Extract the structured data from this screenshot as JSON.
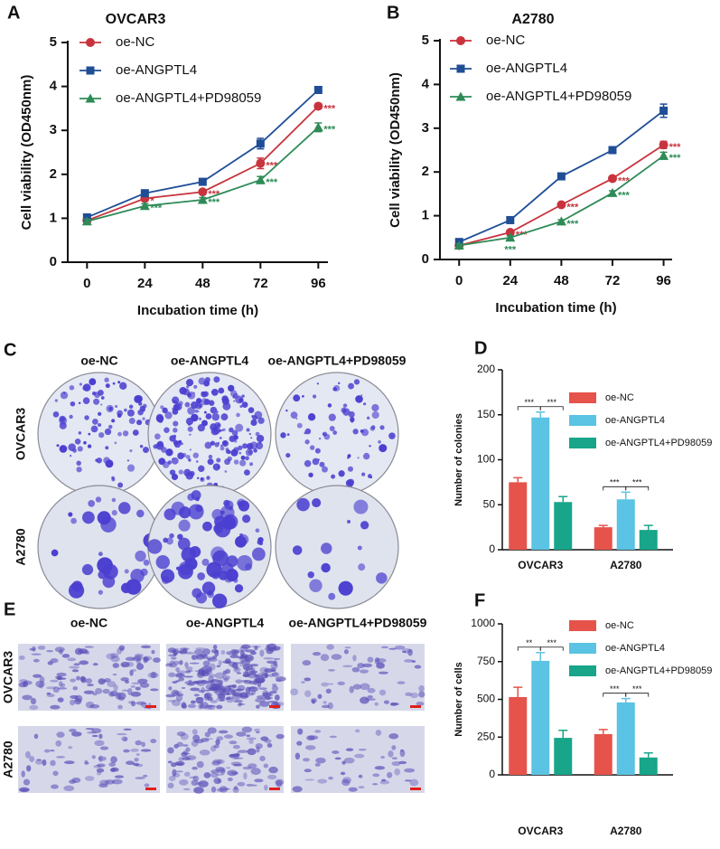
{
  "chart_data": [
    {
      "panel": "A",
      "type": "line",
      "title": "OVCAR3",
      "x_label": "Incubation time (h)",
      "y_label": "Cell viability (OD450nm)",
      "x": [
        0,
        24,
        48,
        72,
        96
      ],
      "xlim": [
        -8,
        100
      ],
      "xticks": [
        0,
        24,
        48,
        72,
        96
      ],
      "ylim": [
        0,
        5
      ],
      "yticks": [
        0,
        1,
        2,
        3,
        4,
        5
      ],
      "series": [
        {
          "name": "oe-NC",
          "color": "#c8333d",
          "marker": "circle",
          "values": [
            0.95,
            1.45,
            1.6,
            2.25,
            3.55
          ],
          "errors": [
            0.05,
            0.05,
            0.05,
            0.12,
            0.05
          ],
          "significance": [
            null,
            "*",
            "***",
            "***",
            "***"
          ]
        },
        {
          "name": "oe-ANGPTL4",
          "color": "#1f4e96",
          "marker": "square",
          "values": [
            1.02,
            1.57,
            1.83,
            2.7,
            3.92
          ],
          "errors": [
            0.05,
            0.05,
            0.05,
            0.12,
            0.03
          ],
          "significance": [
            null,
            null,
            null,
            null,
            null
          ]
        },
        {
          "name": "oe-ANGPTL4+PD98059",
          "color": "#2e8b57",
          "marker": "triangle",
          "values": [
            0.93,
            1.28,
            1.42,
            1.87,
            3.07
          ],
          "errors": [
            0.05,
            0.05,
            0.05,
            0.08,
            0.1
          ],
          "significance": [
            null,
            "***",
            "***",
            "***",
            "***"
          ]
        }
      ]
    },
    {
      "panel": "B",
      "type": "line",
      "title": "A2780",
      "x_label": "Incubation time (h)",
      "y_label": "Cell viability (OD450nm)",
      "x": [
        0,
        24,
        48,
        72,
        96
      ],
      "xlim": [
        -9,
        100
      ],
      "xticks": [
        0,
        24,
        48,
        72,
        96
      ],
      "ylim": [
        0,
        5
      ],
      "yticks": [
        0,
        1,
        2,
        3,
        4,
        5
      ],
      "series": [
        {
          "name": "oe-NC",
          "color": "#c8333d",
          "marker": "circle",
          "values": [
            0.32,
            0.62,
            1.25,
            1.85,
            2.62
          ],
          "errors": [
            0.04,
            0.04,
            0.04,
            0.05,
            0.08
          ],
          "significance": [
            null,
            "***",
            "***",
            "***",
            "***"
          ]
        },
        {
          "name": "oe-ANGPTL4",
          "color": "#1f4e96",
          "marker": "square",
          "values": [
            0.4,
            0.9,
            1.9,
            2.5,
            3.4
          ],
          "errors": [
            0.05,
            0.05,
            0.05,
            0.05,
            0.15
          ],
          "significance": [
            null,
            null,
            null,
            null,
            null
          ]
        },
        {
          "name": "oe-ANGPTL4+PD98059",
          "color": "#2e8b57",
          "marker": "triangle",
          "values": [
            0.32,
            0.5,
            0.87,
            1.52,
            2.37
          ],
          "errors": [
            0.04,
            0.04,
            0.04,
            0.05,
            0.08
          ],
          "significance": [
            null,
            "***",
            "***",
            "***",
            "***"
          ]
        }
      ]
    },
    {
      "panel": "D",
      "type": "bar",
      "y_label": "Number of colonies",
      "categories": [
        "OVCAR3",
        "A2780"
      ],
      "ylim": [
        0,
        200
      ],
      "yticks": [
        0,
        50,
        100,
        150,
        200
      ],
      "series": [
        {
          "name": "oe-NC",
          "color": "#e5534b",
          "values": [
            75,
            25
          ],
          "errors": [
            5,
            2
          ]
        },
        {
          "name": "oe-ANGPTL4",
          "color": "#5bc3e3",
          "values": [
            147,
            56
          ],
          "errors": [
            6,
            8
          ]
        },
        {
          "name": "oe-ANGPTL4+PD98059",
          "color": "#18a58a",
          "values": [
            53,
            22
          ],
          "errors": [
            6,
            5
          ]
        }
      ],
      "brackets": [
        [
          "***",
          "***"
        ],
        [
          "***",
          "***"
        ]
      ]
    },
    {
      "panel": "F",
      "type": "bar",
      "y_label": "Number of cells",
      "categories": [
        "OVCAR3",
        "A2780"
      ],
      "ylim": [
        0,
        1000
      ],
      "yticks": [
        0,
        250,
        500,
        750,
        1000
      ],
      "series": [
        {
          "name": "oe-NC",
          "color": "#e5534b",
          "values": [
            515,
            270
          ],
          "errors": [
            65,
            30
          ]
        },
        {
          "name": "oe-ANGPTL4",
          "color": "#5bc3e3",
          "values": [
            755,
            480
          ],
          "errors": [
            55,
            25
          ]
        },
        {
          "name": "oe-ANGPTL4+PD98059",
          "color": "#18a58a",
          "values": [
            245,
            115
          ],
          "errors": [
            50,
            30
          ]
        }
      ],
      "brackets": [
        [
          "**",
          "***"
        ],
        [
          "***",
          "***"
        ]
      ]
    }
  ],
  "images": [
    {
      "panel": "C",
      "columns": [
        "oe-NC",
        "oe-ANGPTL4",
        "oe-ANGPTL4+PD98059"
      ],
      "rows": [
        "OVCAR3",
        "A2780"
      ]
    },
    {
      "panel": "E",
      "columns": [
        "oe-NC",
        "oe-ANGPTL4",
        "oe-ANGPTL4+PD98059"
      ],
      "rows": [
        "OVCAR3",
        "A2780"
      ]
    }
  ]
}
